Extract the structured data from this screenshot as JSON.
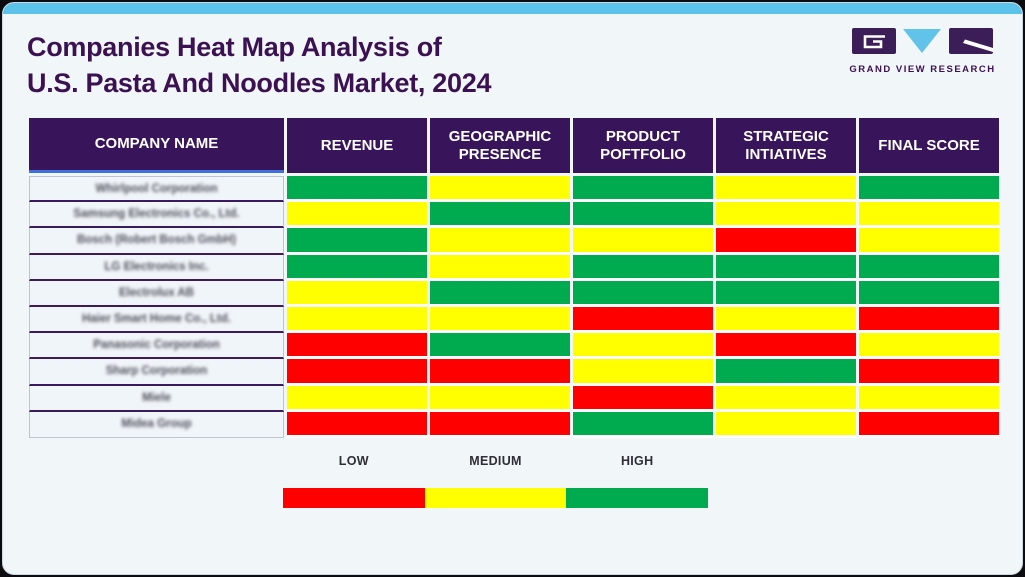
{
  "title": {
    "line1": "Companies Heat Map Analysis of",
    "line2": "U.S. Pasta And Noodles Market, 2024"
  },
  "logo": {
    "brand": "GRAND VIEW RESEARCH"
  },
  "table": {
    "columns": [
      "COMPANY NAME",
      "REVENUE",
      "GEOGRAPHIC PRESENCE",
      "PRODUCT POFTFOLIO",
      "STRATEGIC INTIATIVES",
      "FINAL SCORE"
    ],
    "company_names_blurred": true
  },
  "legend": {
    "items": [
      {
        "label": "LOW",
        "level": "low"
      },
      {
        "label": "MEDIUM",
        "level": "medium"
      },
      {
        "label": "HIGH",
        "level": "high"
      }
    ]
  },
  "colors": {
    "low": "#FF0000",
    "medium": "#FFFF00",
    "high": "#00AB4F",
    "header_bg": "#38155A",
    "title_text": "#3B1152",
    "accent_blue": "#5BC2EA",
    "logo_purple": "#3B1D57",
    "logo_blue": "#62C3EA"
  },
  "chart_data": {
    "type": "heatmap",
    "title": "Companies Heat Map Analysis of U.S. Pasta And Noodles Market, 2024",
    "columns": [
      "Revenue",
      "Geographic Presence",
      "Product Poftfolio",
      "Strategic Intiatives",
      "Final Score"
    ],
    "rows": [
      "Whirlpool Corporation",
      "Samsung Electronics Co., Ltd.",
      "Bosch (Robert Bosch GmbH)",
      "LG Electronics Inc.",
      "Electrolux AB",
      "Haier Smart Home Co., Ltd.",
      "Panasonic Corporation",
      "Sharp Corporation",
      "Miele",
      "Midea Group"
    ],
    "rows_blurred": true,
    "values": [
      [
        "high",
        "medium",
        "high",
        "medium",
        "high"
      ],
      [
        "medium",
        "high",
        "high",
        "medium",
        "medium"
      ],
      [
        "high",
        "medium",
        "medium",
        "low",
        "medium"
      ],
      [
        "high",
        "medium",
        "high",
        "high",
        "high"
      ],
      [
        "medium",
        "high",
        "high",
        "high",
        "high"
      ],
      [
        "medium",
        "medium",
        "low",
        "medium",
        "low"
      ],
      [
        "low",
        "high",
        "medium",
        "low",
        "medium"
      ],
      [
        "low",
        "low",
        "medium",
        "high",
        "low"
      ],
      [
        "medium",
        "medium",
        "low",
        "medium",
        "medium"
      ],
      [
        "low",
        "low",
        "high",
        "medium",
        "low"
      ]
    ],
    "scale": {
      "low": "red",
      "medium": "yellow",
      "high": "green"
    },
    "legend": [
      "LOW",
      "MEDIUM",
      "HIGH"
    ],
    "legend_position": "bottom"
  }
}
